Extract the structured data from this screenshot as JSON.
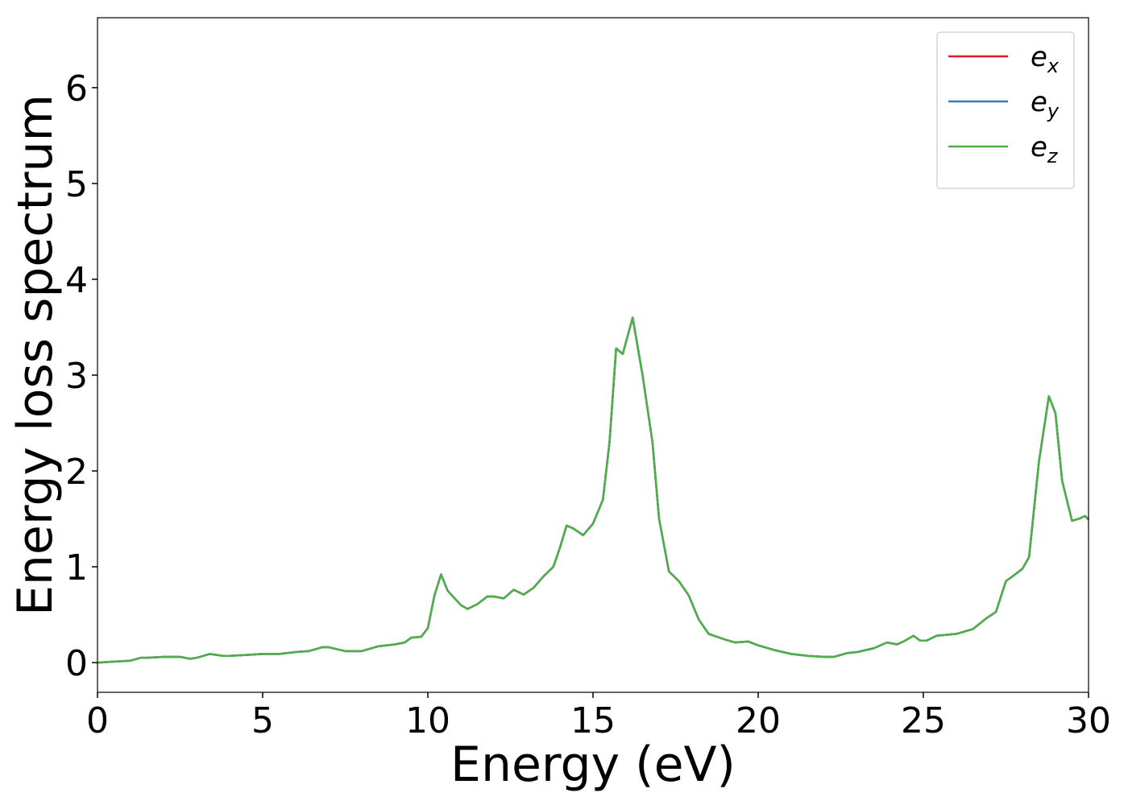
{
  "chart_data": {
    "type": "line",
    "xlabel": "Energy (eV)",
    "ylabel": "Energy loss spectrum",
    "x": [
      0,
      0.5,
      1,
      1.3,
      1.5,
      2,
      2.5,
      2.8,
      3,
      3.4,
      3.8,
      4,
      4.5,
      5,
      5.5,
      6,
      6.4,
      6.8,
      7,
      7.5,
      8,
      8.5,
      9,
      9.3,
      9.5,
      9.8,
      10,
      10.2,
      10.4,
      10.6,
      11,
      11.2,
      11.5,
      11.8,
      12,
      12.3,
      12.6,
      12.9,
      13.2,
      13.5,
      13.8,
      14,
      14.2,
      14.4,
      14.7,
      15,
      15.3,
      15.5,
      15.7,
      15.9,
      16.2,
      16.5,
      16.8,
      17,
      17.3,
      17.6,
      17.9,
      18.2,
      18.5,
      19,
      19.3,
      19.7,
      20,
      20.5,
      21,
      21.5,
      22,
      22.3,
      22.7,
      23,
      23.5,
      23.9,
      24.2,
      24.4,
      24.7,
      24.9,
      25.1,
      25.4,
      26,
      26.5,
      26.9,
      27.2,
      27.5,
      27.7,
      28,
      28.2,
      28.5,
      28.8,
      29,
      29.2,
      29.5,
      29.7,
      29.9,
      30
    ],
    "series": [
      {
        "name": "ex",
        "color": "#e41a1c",
        "values": [
          0,
          0.01,
          0.02,
          0.05,
          0.05,
          0.06,
          0.06,
          0.04,
          0.05,
          0.09,
          0.07,
          0.07,
          0.08,
          0.09,
          0.09,
          0.11,
          0.12,
          0.16,
          0.16,
          0.12,
          0.12,
          0.17,
          0.19,
          0.21,
          0.26,
          0.27,
          0.36,
          0.7,
          0.92,
          0.75,
          0.6,
          0.56,
          0.61,
          0.69,
          0.69,
          0.67,
          0.76,
          0.71,
          0.78,
          0.9,
          1.0,
          1.2,
          1.43,
          1.4,
          1.33,
          1.45,
          1.7,
          2.3,
          3.28,
          3.22,
          3.6,
          3.0,
          2.3,
          1.5,
          0.95,
          0.85,
          0.7,
          0.45,
          0.3,
          0.24,
          0.21,
          0.22,
          0.18,
          0.13,
          0.09,
          0.07,
          0.06,
          0.06,
          0.1,
          0.11,
          0.15,
          0.21,
          0.19,
          0.22,
          0.28,
          0.23,
          0.23,
          0.28,
          0.3,
          0.35,
          0.46,
          0.53,
          0.85,
          0.9,
          0.98,
          1.1,
          2.1,
          2.78,
          2.6,
          1.9,
          1.48,
          1.5,
          1.53,
          1.49
        ]
      },
      {
        "name": "ey",
        "color": "#377eb8",
        "values": [
          0,
          0.01,
          0.02,
          0.05,
          0.05,
          0.06,
          0.06,
          0.04,
          0.05,
          0.09,
          0.07,
          0.07,
          0.08,
          0.09,
          0.09,
          0.11,
          0.12,
          0.16,
          0.16,
          0.12,
          0.12,
          0.17,
          0.19,
          0.21,
          0.26,
          0.27,
          0.36,
          0.7,
          0.92,
          0.75,
          0.6,
          0.56,
          0.61,
          0.69,
          0.69,
          0.67,
          0.76,
          0.71,
          0.78,
          0.9,
          1.0,
          1.2,
          1.43,
          1.4,
          1.33,
          1.45,
          1.7,
          2.3,
          3.28,
          3.22,
          3.6,
          3.0,
          2.3,
          1.5,
          0.95,
          0.85,
          0.7,
          0.45,
          0.3,
          0.24,
          0.21,
          0.22,
          0.18,
          0.13,
          0.09,
          0.07,
          0.06,
          0.06,
          0.1,
          0.11,
          0.15,
          0.21,
          0.19,
          0.22,
          0.28,
          0.23,
          0.23,
          0.28,
          0.3,
          0.35,
          0.46,
          0.53,
          0.85,
          0.9,
          0.98,
          1.1,
          2.1,
          2.78,
          2.6,
          1.9,
          1.48,
          1.5,
          1.53,
          1.49
        ]
      },
      {
        "name": "ez",
        "color": "#4daf4a",
        "values": [
          0,
          0.01,
          0.02,
          0.05,
          0.05,
          0.06,
          0.06,
          0.04,
          0.05,
          0.09,
          0.07,
          0.07,
          0.08,
          0.09,
          0.09,
          0.11,
          0.12,
          0.16,
          0.16,
          0.12,
          0.12,
          0.17,
          0.19,
          0.21,
          0.26,
          0.27,
          0.36,
          0.7,
          0.92,
          0.75,
          0.6,
          0.56,
          0.61,
          0.69,
          0.69,
          0.67,
          0.76,
          0.71,
          0.78,
          0.9,
          1.0,
          1.2,
          1.43,
          1.4,
          1.33,
          1.45,
          1.7,
          2.3,
          3.28,
          3.22,
          3.6,
          3.0,
          2.3,
          1.5,
          0.95,
          0.85,
          0.7,
          0.45,
          0.3,
          0.24,
          0.21,
          0.22,
          0.18,
          0.13,
          0.09,
          0.07,
          0.06,
          0.06,
          0.1,
          0.11,
          0.15,
          0.21,
          0.19,
          0.22,
          0.28,
          0.23,
          0.23,
          0.28,
          0.3,
          0.35,
          0.46,
          0.53,
          0.85,
          0.9,
          0.98,
          1.1,
          2.1,
          2.78,
          2.6,
          1.9,
          1.48,
          1.5,
          1.53,
          1.49
        ]
      }
    ],
    "xlim": [
      0,
      30
    ],
    "xticks": [
      0,
      5,
      10,
      15,
      20,
      25,
      30
    ],
    "ylim": [
      -0.31,
      6.73
    ],
    "yticks": [
      0,
      1,
      2,
      3,
      4,
      5,
      6
    ],
    "legend": "upper right",
    "grid": false
  }
}
